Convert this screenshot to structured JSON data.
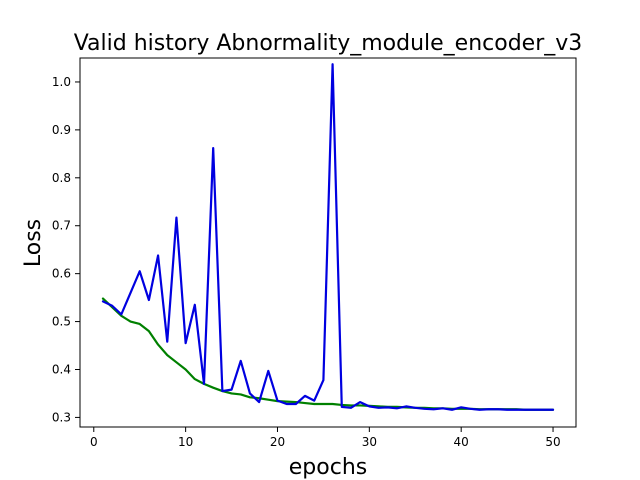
{
  "chart_data": {
    "type": "line",
    "title": "Valid history Abnormality_module_encoder_v3",
    "xlabel": "epochs",
    "ylabel": "Loss",
    "xlim": [
      -1.5,
      52.5
    ],
    "ylim": [
      0.28,
      1.05
    ],
    "xticks": [
      0,
      10,
      20,
      30,
      40,
      50
    ],
    "yticks": [
      0.3,
      0.4,
      0.5,
      0.6,
      0.7,
      0.8,
      0.9,
      1.0
    ],
    "grid": false,
    "legend": "none",
    "series": [
      {
        "color": "#008000",
        "x": [
          1,
          2,
          3,
          4,
          5,
          6,
          7,
          8,
          9,
          10,
          11,
          12,
          13,
          14,
          15,
          16,
          17,
          18,
          19,
          20,
          21,
          22,
          23,
          24,
          25,
          26,
          27,
          28,
          29,
          30,
          31,
          32,
          33,
          34,
          35,
          36,
          37,
          38,
          39,
          40,
          41,
          42,
          43,
          44,
          45,
          46,
          47,
          48,
          49,
          50
        ],
        "values": [
          0.548,
          0.53,
          0.512,
          0.5,
          0.495,
          0.48,
          0.452,
          0.43,
          0.415,
          0.4,
          0.38,
          0.37,
          0.362,
          0.355,
          0.35,
          0.348,
          0.342,
          0.34,
          0.337,
          0.334,
          0.333,
          0.332,
          0.33,
          0.328,
          0.328,
          0.328,
          0.326,
          0.325,
          0.325,
          0.324,
          0.323,
          0.322,
          0.322,
          0.321,
          0.32,
          0.32,
          0.319,
          0.319,
          0.318,
          0.318,
          0.318,
          0.317,
          0.317,
          0.317,
          0.317,
          0.317,
          0.316,
          0.316,
          0.316,
          0.316
        ]
      },
      {
        "color": "#0000e0",
        "x": [
          1,
          2,
          3,
          4,
          5,
          6,
          7,
          8,
          9,
          10,
          11,
          12,
          13,
          14,
          15,
          16,
          17,
          18,
          19,
          20,
          21,
          22,
          23,
          24,
          25,
          26,
          27,
          28,
          29,
          30,
          31,
          32,
          33,
          34,
          35,
          36,
          37,
          38,
          39,
          40,
          41,
          42,
          43,
          44,
          45,
          46,
          47,
          48,
          49,
          50
        ],
        "values": [
          0.542,
          0.533,
          0.515,
          0.56,
          0.605,
          0.545,
          0.638,
          0.458,
          0.717,
          0.455,
          0.535,
          0.37,
          0.862,
          0.355,
          0.358,
          0.418,
          0.35,
          0.332,
          0.397,
          0.335,
          0.328,
          0.328,
          0.345,
          0.335,
          0.378,
          1.037,
          0.322,
          0.32,
          0.332,
          0.323,
          0.32,
          0.321,
          0.319,
          0.323,
          0.32,
          0.318,
          0.317,
          0.319,
          0.316,
          0.321,
          0.318,
          0.316,
          0.317,
          0.317,
          0.316,
          0.316,
          0.316,
          0.316,
          0.316,
          0.316
        ]
      }
    ]
  }
}
